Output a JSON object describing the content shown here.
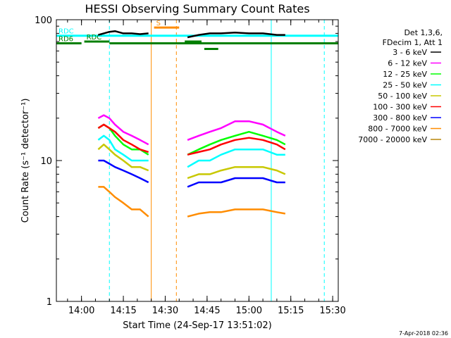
{
  "chart_data": {
    "type": "line",
    "title": "HESSI Observing Summary Count Rates",
    "xlabel": "Start Time (24-Sep-17 13:51:02)",
    "ylabel": "Count Rate (s⁻¹ detector⁻¹)",
    "y_scale": "log",
    "ylim": [
      1,
      100
    ],
    "xlim": [
      "13:51",
      "15:32"
    ],
    "x_ticks": [
      "14:00",
      "14:15",
      "14:30",
      "14:45",
      "15:00",
      "15:15",
      "15:30"
    ],
    "y_ticks": [
      "1",
      "10",
      "100"
    ],
    "legend_title": [
      "Det 1,3,6,",
      "FDecim 1, Att 1"
    ],
    "legend_position": "right",
    "series": [
      {
        "name": "3 - 6 keV",
        "color": "#000000",
        "segments": [
          {
            "x": [
              "14:06",
              "14:08",
              "14:10",
              "14:12",
              "14:15",
              "14:18",
              "14:21",
              "14:24"
            ],
            "y": [
              78,
              80,
              82,
              83,
              80,
              80,
              79,
              80
            ]
          },
          {
            "x": [
              "14:38",
              "14:42",
              "14:46",
              "14:50",
              "14:55",
              "15:00",
              "15:05",
              "15:10",
              "15:13"
            ],
            "y": [
              75,
              78,
              80,
              80,
              81,
              80,
              80,
              78,
              78
            ]
          }
        ]
      },
      {
        "name": "6 - 12 keV",
        "color": "#ff00ff",
        "segments": [
          {
            "x": [
              "14:06",
              "14:08",
              "14:10",
              "14:12",
              "14:15",
              "14:18",
              "14:21",
              "14:24"
            ],
            "y": [
              20,
              21,
              20,
              18,
              16,
              15,
              14,
              13
            ]
          },
          {
            "x": [
              "14:38",
              "14:42",
              "14:46",
              "14:50",
              "14:55",
              "15:00",
              "15:05",
              "15:10",
              "15:13"
            ],
            "y": [
              14,
              15,
              16,
              17,
              19,
              19,
              18,
              16,
              15
            ]
          }
        ]
      },
      {
        "name": "12 - 25 keV",
        "color": "#00ff00",
        "segments": [
          {
            "x": [
              "14:06",
              "14:08",
              "14:10",
              "14:12",
              "14:15",
              "14:18",
              "14:21",
              "14:24"
            ],
            "y": [
              17,
              18,
              17,
              15,
              13,
              12,
              12,
              11
            ]
          },
          {
            "x": [
              "14:38",
              "14:42",
              "14:46",
              "14:50",
              "14:55",
              "15:00",
              "15:05",
              "15:10",
              "15:13"
            ],
            "y": [
              11,
              12,
              13,
              14,
              15,
              16,
              15,
              14,
              13
            ]
          }
        ]
      },
      {
        "name": "25 - 50 keV",
        "color": "#00ffff",
        "segments": [
          {
            "x": [
              "14:06",
              "14:08",
              "14:10",
              "14:12",
              "14:15",
              "14:18",
              "14:21",
              "14:24"
            ],
            "y": [
              14,
              15,
              14,
              12,
              11,
              10,
              10,
              10
            ]
          },
          {
            "x": [
              "14:38",
              "14:42",
              "14:46",
              "14:50",
              "14:55",
              "15:00",
              "15:05",
              "15:10",
              "15:13"
            ],
            "y": [
              9,
              10,
              10,
              11,
              12,
              12,
              12,
              11,
              11
            ]
          }
        ]
      },
      {
        "name": "50 - 100 keV",
        "color": "#c8c800",
        "segments": [
          {
            "x": [
              "14:06",
              "14:08",
              "14:10",
              "14:12",
              "14:15",
              "14:18",
              "14:21",
              "14:24"
            ],
            "y": [
              12,
              13,
              12,
              11,
              10,
              9,
              9,
              8.5
            ]
          },
          {
            "x": [
              "14:38",
              "14:42",
              "14:46",
              "14:50",
              "14:55",
              "15:00",
              "15:05",
              "15:10",
              "15:13"
            ],
            "y": [
              7.5,
              8,
              8,
              8.5,
              9,
              9,
              9,
              8.5,
              8
            ]
          }
        ]
      },
      {
        "name": "100 - 300 keV",
        "color": "#ff0000",
        "segments": [
          {
            "x": [
              "14:06",
              "14:08",
              "14:10",
              "14:12",
              "14:15",
              "14:18",
              "14:21",
              "14:24"
            ],
            "y": [
              17,
              18,
              17,
              16,
              14,
              13,
              12,
              11.5
            ]
          },
          {
            "x": [
              "14:38",
              "14:42",
              "14:46",
              "14:50",
              "14:55",
              "15:00",
              "15:05",
              "15:10",
              "15:13"
            ],
            "y": [
              11,
              11.5,
              12,
              13,
              14,
              14.5,
              14,
              13,
              12
            ]
          }
        ]
      },
      {
        "name": "300 - 800 keV",
        "color": "#0000ff",
        "segments": [
          {
            "x": [
              "14:06",
              "14:08",
              "14:10",
              "14:12",
              "14:15",
              "14:18",
              "14:21",
              "14:24"
            ],
            "y": [
              10,
              10,
              9.5,
              9,
              8.5,
              8,
              7.5,
              7
            ]
          },
          {
            "x": [
              "14:38",
              "14:42",
              "14:46",
              "14:50",
              "14:55",
              "15:00",
              "15:05",
              "15:10",
              "15:13"
            ],
            "y": [
              6.5,
              7,
              7,
              7,
              7.5,
              7.5,
              7.5,
              7,
              7
            ]
          }
        ]
      },
      {
        "name": "800 - 7000 keV",
        "color": "#ff8c00",
        "segments": [
          {
            "x": [
              "14:06",
              "14:08",
              "14:10",
              "14:12",
              "14:15",
              "14:18",
              "14:21",
              "14:24"
            ],
            "y": [
              6.5,
              6.5,
              6,
              5.5,
              5,
              4.5,
              4.5,
              4
            ]
          },
          {
            "x": [
              "14:38",
              "14:42",
              "14:46",
              "14:50",
              "14:55",
              "15:00",
              "15:05",
              "15:10",
              "15:13"
            ],
            "y": [
              4,
              4.2,
              4.3,
              4.3,
              4.5,
              4.5,
              4.5,
              4.3,
              4.2
            ]
          }
        ]
      },
      {
        "name": "7000 - 20000 keV",
        "color": "#b8860b",
        "segments": []
      }
    ],
    "flag_bars": [
      {
        "label": "RDC",
        "color": "#00ffff",
        "x": [
          "13:51",
          "15:32"
        ],
        "y": 77
      },
      {
        "label": "RDC",
        "color": "#007f00",
        "x": [
          "14:01",
          "14:10"
        ],
        "y": 70
      },
      {
        "label": "",
        "color": "#007f00",
        "x": [
          "14:10",
          "15:32"
        ],
        "y": 68
      },
      {
        "label": "RD6",
        "color": "#007f00",
        "x": [
          "13:51",
          "14:00"
        ],
        "y": 68
      },
      {
        "label": "",
        "color": "#007f00",
        "x": [
          "14:37",
          "14:43"
        ],
        "y": 70
      },
      {
        "label": "",
        "color": "#007f00",
        "x": [
          "14:44",
          "14:49"
        ],
        "y": 62
      },
      {
        "label": "S",
        "color": "#ff8c00",
        "x": [
          "14:26",
          "14:35"
        ],
        "y": 88
      }
    ],
    "vertical_lines": [
      {
        "x": "13:51",
        "color": "#00ffff",
        "style": "solid"
      },
      {
        "x": "14:10",
        "color": "#00ffff",
        "style": "dashed"
      },
      {
        "x": "15:08",
        "color": "#00ffff",
        "style": "solid"
      },
      {
        "x": "15:27",
        "color": "#00ffff",
        "style": "dashed"
      },
      {
        "x": "14:25",
        "color": "#ff8c00",
        "style": "solid"
      },
      {
        "x": "14:34",
        "color": "#ff8c00",
        "style": "dashed"
      }
    ],
    "footer_stamp": "7-Apr-2018 02:36"
  }
}
